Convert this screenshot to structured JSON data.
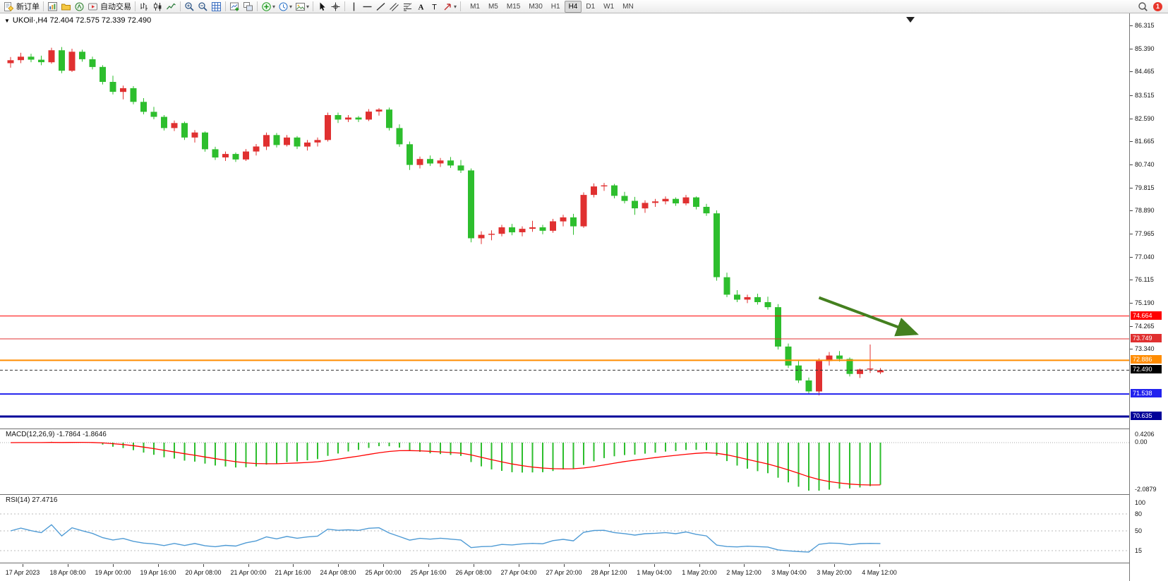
{
  "toolbar": {
    "items": [
      {
        "name": "new-order",
        "label": "新订单"
      },
      {
        "sep": true
      },
      {
        "name": "chart-window"
      },
      {
        "name": "profiles"
      },
      {
        "name": "navigator"
      },
      {
        "name": "auto-trading",
        "label": "自动交易"
      },
      {
        "sep": true
      },
      {
        "name": "bar-chart-type"
      },
      {
        "name": "candlestick-type"
      },
      {
        "name": "line-chart-type"
      },
      {
        "sep": true
      },
      {
        "name": "zoom-in"
      },
      {
        "name": "zoom-out"
      },
      {
        "name": "grid"
      },
      {
        "sep": true
      },
      {
        "name": "new-chart"
      },
      {
        "name": "tile-windows"
      },
      {
        "sep": true
      },
      {
        "name": "indicators",
        "dropdown": true
      },
      {
        "name": "periods",
        "dropdown": true
      },
      {
        "name": "templates",
        "dropdown": true
      },
      {
        "sep": true
      },
      {
        "name": "cursor"
      },
      {
        "name": "crosshair"
      },
      {
        "sep": true
      },
      {
        "name": "vertical-line"
      },
      {
        "name": "horizontal-line"
      },
      {
        "name": "trendline"
      },
      {
        "name": "channel"
      },
      {
        "name": "fibonacci"
      },
      {
        "name": "text"
      },
      {
        "name": "text-label"
      },
      {
        "name": "arrows",
        "dropdown": true
      },
      {
        "sep": true
      }
    ],
    "timeframes": [
      "M1",
      "M5",
      "M15",
      "M30",
      "H1",
      "H4",
      "D1",
      "W1",
      "MN"
    ],
    "active_timeframe": "H4",
    "notification_count": "1"
  },
  "chart": {
    "symbol_header": "UKOil·,H4 72.404 72.575 72.339 72.490",
    "price_axis_labels": [
      "86.315",
      "85.390",
      "84.465",
      "83.515",
      "82.590",
      "81.665",
      "80.740",
      "79.815",
      "78.890",
      "77.965",
      "77.040",
      "76.115",
      "75.190",
      "74.265",
      "73.340"
    ],
    "hlines": [
      {
        "label": "74.664",
        "price": 74.664,
        "color": "#FF0000",
        "width": 1
      },
      {
        "label": "73.749",
        "price": 73.749,
        "color": "#E03030",
        "width": 1
      },
      {
        "label": "72.886",
        "price": 72.886,
        "color": "#FF8C00",
        "width": 2
      },
      {
        "label": "71.538",
        "price": 71.538,
        "color": "#2222EE",
        "width": 2
      },
      {
        "label": "70.635",
        "price": 70.635,
        "color": "#000099",
        "width": 3
      }
    ],
    "current_price": {
      "label": "72.490",
      "price": 72.49,
      "color": "#000000"
    }
  },
  "indicators": {
    "macd": {
      "label": "MACD(12,26,9)",
      "values": "-1.7864 -1.8646",
      "axis_labels": [
        "0.4206",
        "0.00",
        "-2.0879"
      ],
      "fast": 12,
      "slow": 26,
      "signal_period": 9,
      "histogram_color": "#2DBE2D",
      "signal_color": "#FF0000"
    },
    "rsi": {
      "label": "RSI(14)",
      "value": "27.4716",
      "axis_labels": [
        "100",
        "80",
        "50",
        "15"
      ],
      "period": 14,
      "levels": [
        80,
        50,
        15
      ],
      "line_color": "#4F9BD5"
    }
  },
  "time_axis": {
    "labels": [
      "17 Apr 2023",
      "18 Apr 08:00",
      "19 Apr 00:00",
      "19 Apr 16:00",
      "20 Apr 08:00",
      "21 Apr 00:00",
      "21 Apr 16:00",
      "24 Apr 08:00",
      "25 Apr 00:00",
      "25 Apr 16:00",
      "26 Apr 08:00",
      "27 Apr 04:00",
      "27 Apr 20:00",
      "28 Apr 12:00",
      "1 May 04:00",
      "1 May 20:00",
      "2 May 12:00",
      "3 May 04:00",
      "3 May 20:00",
      "4 May 12:00"
    ]
  },
  "chart_data": {
    "type": "candlestick",
    "symbol": "UKOil",
    "timeframe": "H4",
    "ohlc": {
      "open": 72.404,
      "high": 72.575,
      "low": 72.339,
      "close": 72.49
    },
    "up_color": "#E03030",
    "down_color": "#2DBE2D",
    "candles": [
      [
        84.8,
        85.05,
        84.62,
        84.92
      ],
      [
        84.92,
        85.22,
        84.8,
        85.06
      ],
      [
        85.06,
        85.18,
        84.84,
        84.94
      ],
      [
        84.94,
        85.1,
        84.72,
        84.84
      ],
      [
        84.84,
        85.42,
        84.78,
        85.32
      ],
      [
        85.32,
        85.45,
        84.4,
        84.5
      ],
      [
        84.5,
        85.38,
        84.45,
        85.26
      ],
      [
        85.26,
        85.34,
        84.86,
        84.96
      ],
      [
        84.96,
        85.06,
        84.55,
        84.65
      ],
      [
        84.65,
        84.72,
        83.95,
        84.05
      ],
      [
        84.05,
        84.3,
        83.55,
        83.65
      ],
      [
        83.65,
        83.9,
        83.35,
        83.8
      ],
      [
        83.8,
        83.88,
        83.15,
        83.25
      ],
      [
        83.25,
        83.4,
        82.75,
        82.85
      ],
      [
        82.85,
        83.05,
        82.55,
        82.65
      ],
      [
        82.65,
        82.72,
        82.1,
        82.2
      ],
      [
        82.2,
        82.5,
        82.08,
        82.4
      ],
      [
        82.4,
        82.46,
        81.72,
        81.82
      ],
      [
        81.82,
        82.12,
        81.62,
        82.02
      ],
      [
        82.02,
        82.06,
        81.25,
        81.35
      ],
      [
        81.35,
        81.45,
        80.92,
        81.02
      ],
      [
        81.02,
        81.26,
        80.88,
        81.16
      ],
      [
        81.16,
        81.22,
        80.84,
        80.94
      ],
      [
        80.94,
        81.36,
        80.88,
        81.26
      ],
      [
        81.26,
        81.56,
        81.1,
        81.46
      ],
      [
        81.46,
        82.02,
        81.32,
        81.92
      ],
      [
        81.92,
        82.0,
        81.42,
        81.52
      ],
      [
        81.52,
        81.92,
        81.46,
        81.82
      ],
      [
        81.82,
        81.88,
        81.36,
        81.46
      ],
      [
        81.46,
        81.72,
        81.3,
        81.62
      ],
      [
        81.62,
        81.82,
        81.46,
        81.72
      ],
      [
        81.72,
        82.82,
        81.66,
        82.72
      ],
      [
        82.72,
        82.82,
        82.4,
        82.54
      ],
      [
        82.54,
        82.72,
        82.44,
        82.62
      ],
      [
        82.62,
        82.68,
        82.44,
        82.54
      ],
      [
        82.54,
        82.96,
        82.48,
        82.86
      ],
      [
        82.86,
        83.0,
        82.7,
        82.94
      ],
      [
        82.94,
        83.02,
        82.1,
        82.2
      ],
      [
        82.2,
        82.35,
        81.45,
        81.55
      ],
      [
        81.55,
        81.66,
        80.52,
        80.72
      ],
      [
        80.72,
        81.06,
        80.58,
        80.96
      ],
      [
        80.96,
        81.1,
        80.68,
        80.78
      ],
      [
        80.78,
        81.0,
        80.64,
        80.9
      ],
      [
        80.9,
        81.04,
        80.6,
        80.7
      ],
      [
        80.7,
        80.92,
        80.4,
        80.5
      ],
      [
        80.5,
        80.58,
        77.62,
        77.78
      ],
      [
        77.78,
        78.06,
        77.55,
        77.92
      ],
      [
        77.92,
        78.1,
        77.7,
        77.96
      ],
      [
        77.96,
        78.32,
        77.86,
        78.22
      ],
      [
        78.22,
        78.36,
        77.9,
        78.02
      ],
      [
        78.02,
        78.26,
        77.86,
        78.16
      ],
      [
        78.16,
        78.48,
        78.04,
        78.22
      ],
      [
        78.22,
        78.32,
        77.94,
        78.08
      ],
      [
        78.08,
        78.56,
        78.0,
        78.46
      ],
      [
        78.46,
        78.72,
        78.26,
        78.62
      ],
      [
        78.62,
        78.76,
        77.92,
        78.26
      ],
      [
        78.26,
        79.62,
        78.2,
        79.52
      ],
      [
        79.52,
        79.98,
        79.42,
        79.86
      ],
      [
        79.86,
        80.0,
        79.68,
        79.9
      ],
      [
        79.9,
        79.96,
        79.38,
        79.48
      ],
      [
        79.48,
        79.64,
        79.18,
        79.28
      ],
      [
        79.28,
        79.44,
        78.72,
        78.98
      ],
      [
        78.98,
        79.3,
        78.8,
        79.2
      ],
      [
        79.2,
        79.36,
        79.04,
        79.26
      ],
      [
        79.26,
        79.46,
        79.14,
        79.36
      ],
      [
        79.36,
        79.42,
        79.08,
        79.18
      ],
      [
        79.18,
        79.52,
        79.1,
        79.42
      ],
      [
        79.42,
        79.46,
        78.94,
        79.04
      ],
      [
        79.04,
        79.16,
        78.68,
        78.78
      ],
      [
        78.78,
        78.9,
        76.08,
        76.22
      ],
      [
        76.22,
        76.4,
        75.42,
        75.52
      ],
      [
        75.52,
        75.7,
        75.22,
        75.32
      ],
      [
        75.32,
        75.52,
        75.18,
        75.42
      ],
      [
        75.42,
        75.56,
        75.12,
        75.22
      ],
      [
        75.22,
        75.44,
        74.92,
        75.02
      ],
      [
        75.02,
        75.14,
        73.32,
        73.44
      ],
      [
        73.44,
        73.56,
        72.58,
        72.68
      ],
      [
        72.68,
        72.86,
        71.98,
        72.08
      ],
      [
        72.08,
        72.2,
        71.54,
        71.64
      ],
      [
        71.64,
        72.96,
        71.48,
        72.86
      ],
      [
        72.86,
        73.22,
        72.68,
        73.08
      ],
      [
        73.08,
        73.26,
        72.84,
        72.94
      ],
      [
        72.94,
        73.0,
        72.24,
        72.34
      ],
      [
        72.34,
        72.56,
        72.18,
        72.52
      ],
      [
        72.52,
        73.52,
        72.38,
        72.56
      ],
      [
        72.404,
        72.575,
        72.339,
        72.49
      ]
    ],
    "annotations": [
      {
        "type": "arrow",
        "from": {
          "bar": 79,
          "price": 75.4
        },
        "to": {
          "bar": 88.5,
          "price": 73.95
        },
        "color": "#44801F"
      }
    ]
  }
}
